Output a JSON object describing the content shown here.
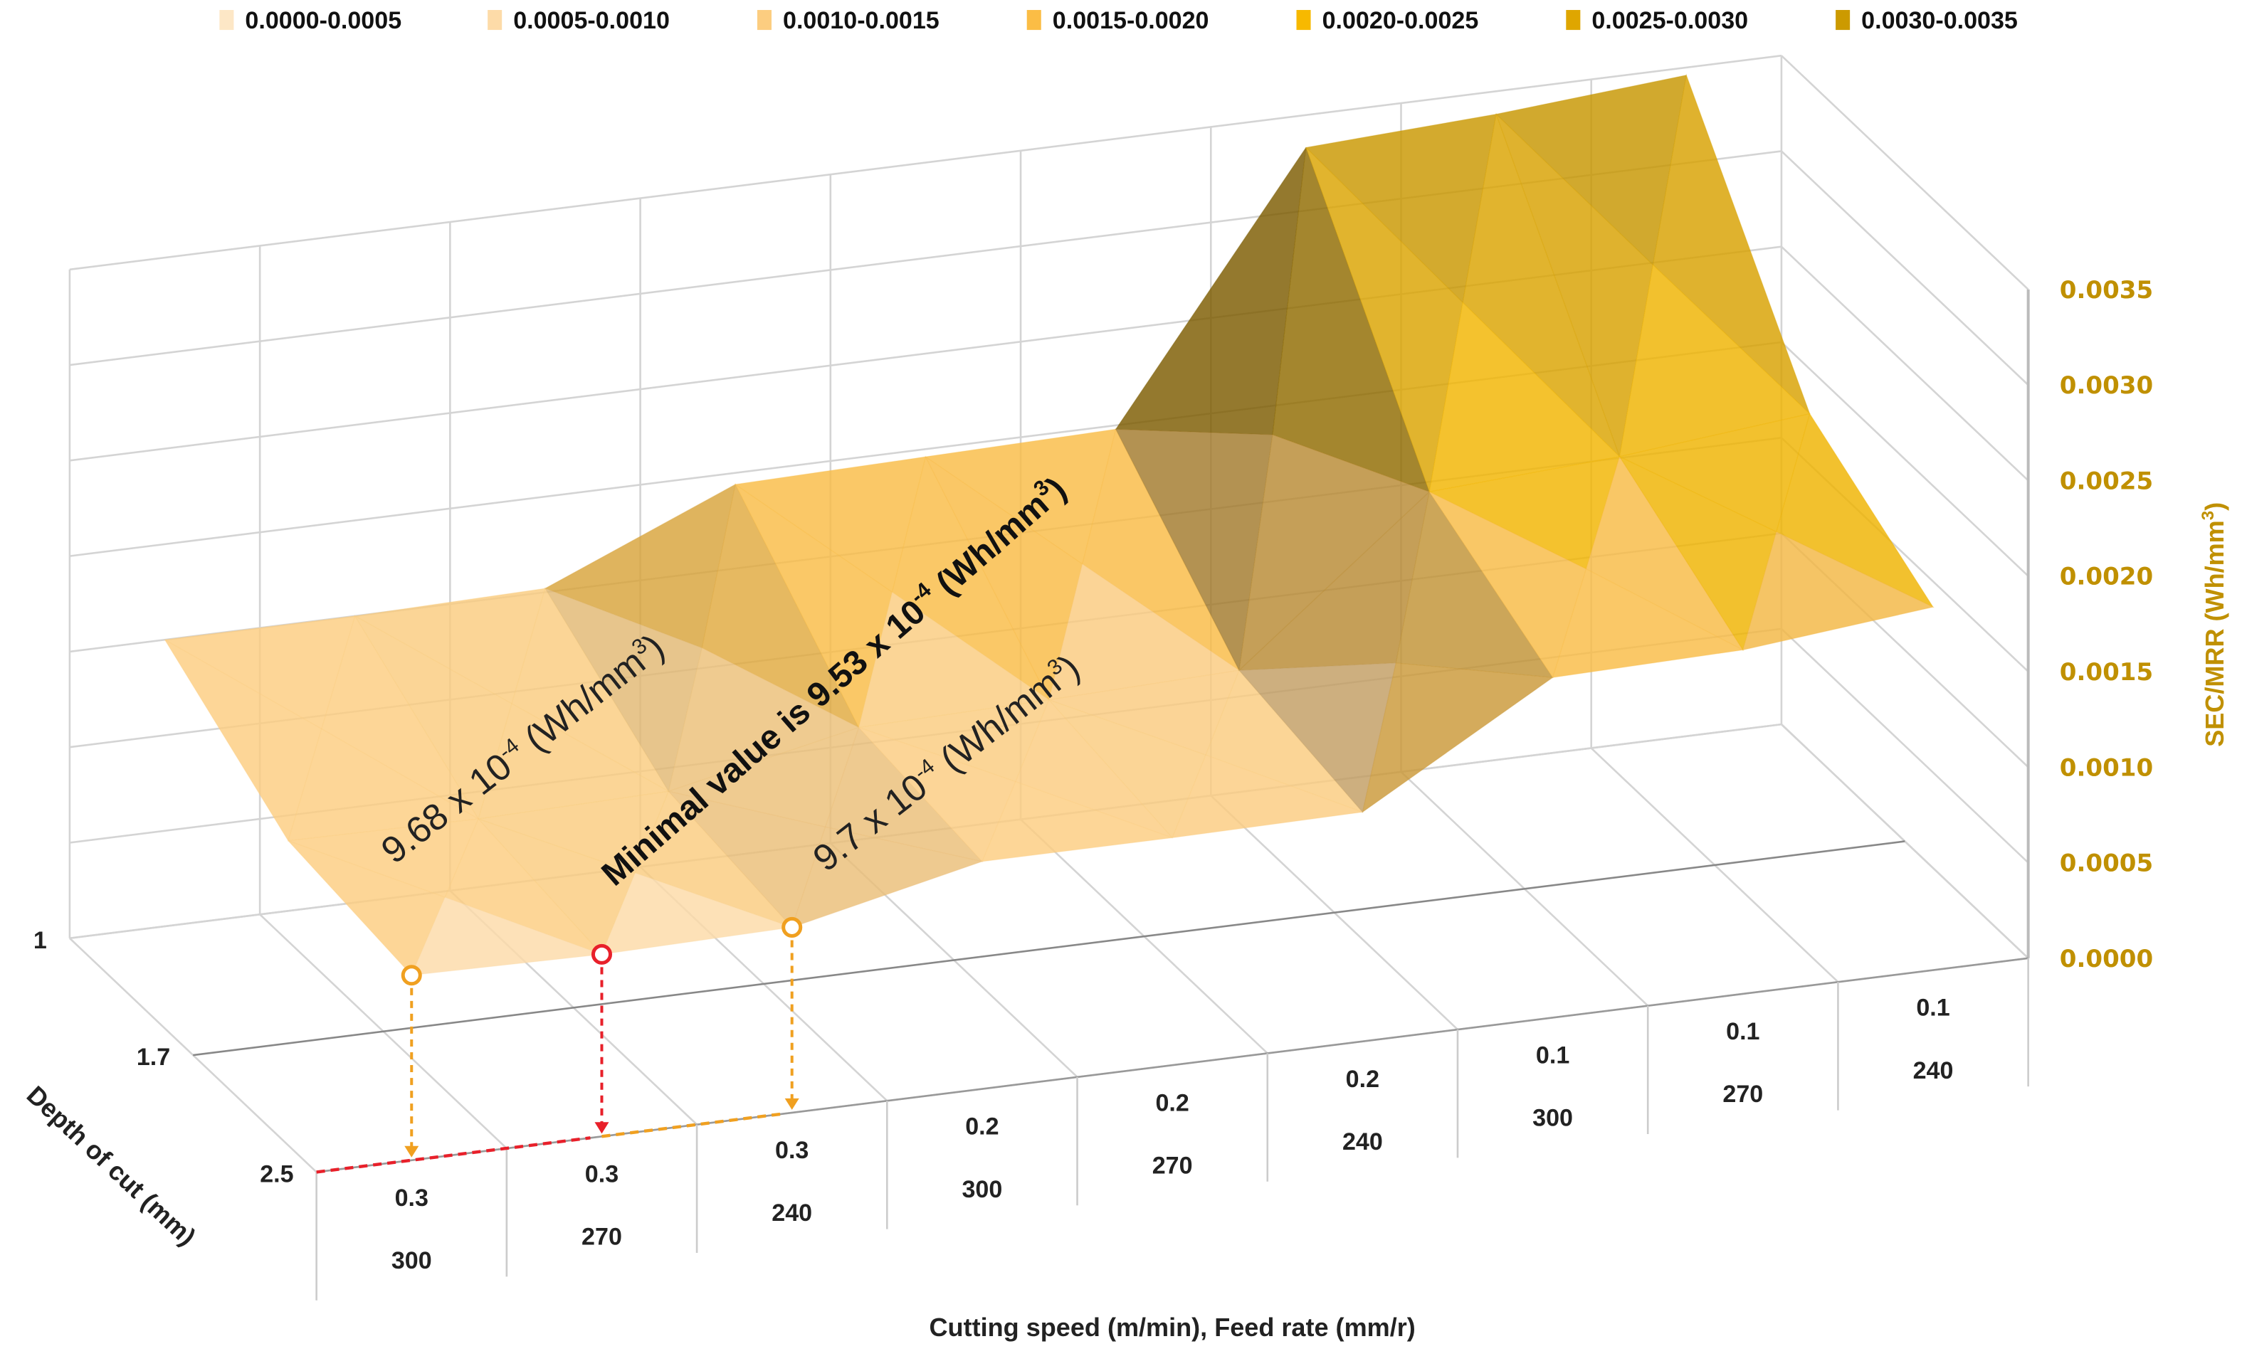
{
  "chart_data": {
    "type": "surface",
    "title": "",
    "xlabel": "Cutting speed (m/min), Feed rate (mm/r)",
    "zlabel": "Depth of cut (mm)",
    "ylabel_main": "SEC/MRR (Wh/mm",
    "ylabel_sup": "3",
    "ylabel_end": ")",
    "ylim": [
      0,
      0.0035
    ],
    "yticks": [
      "0.0000",
      "0.0005",
      "0.0010",
      "0.0015",
      "0.0020",
      "0.0025",
      "0.0030",
      "0.0035"
    ],
    "ytick_values": [
      0,
      0.0005,
      0.001,
      0.0015,
      0.002,
      0.0025,
      0.003,
      0.0035
    ],
    "categories": [
      {
        "feed": "0.3",
        "speed": "300"
      },
      {
        "feed": "0.3",
        "speed": "270"
      },
      {
        "feed": "0.3",
        "speed": "240"
      },
      {
        "feed": "0.2",
        "speed": "300"
      },
      {
        "feed": "0.2",
        "speed": "270"
      },
      {
        "feed": "0.2",
        "speed": "240"
      },
      {
        "feed": "0.1",
        "speed": "300"
      },
      {
        "feed": "0.1",
        "speed": "270"
      },
      {
        "feed": "0.1",
        "speed": "240"
      }
    ],
    "depth_ticks": [
      "2.5",
      "1.7",
      "1"
    ],
    "series": [
      {
        "depth": "2.5",
        "values": [
          0.000968,
          0.000953,
          0.00097,
          0.00119,
          0.00119,
          0.0012,
          0.00178,
          0.0018,
          0.0019
        ]
      },
      {
        "depth": "1.7",
        "values": [
          0.00106,
          0.00105,
          0.00107,
          0.00128,
          0.0013,
          0.00133,
          0.00214,
          0.0022,
          0.0023
        ]
      },
      {
        "depth": "1",
        "values": [
          0.0015,
          0.0015,
          0.00152,
          0.00194,
          0.00196,
          0.00198,
          0.00333,
          0.00338,
          0.00346
        ]
      }
    ],
    "legend_position": "top",
    "legend": [
      {
        "label": "0.0000-0.0005",
        "color": "#fde7c6"
      },
      {
        "label": "0.0005-0.0010",
        "color": "#fddba8"
      },
      {
        "label": "0.0010-0.0015",
        "color": "#fccd80"
      },
      {
        "label": "0.0015-0.0020",
        "color": "#fbbd45"
      },
      {
        "label": "0.0020-0.0025",
        "color": "#f7b900"
      },
      {
        "label": "0.0025-0.0030",
        "color": "#dfa600"
      },
      {
        "label": "0.0030-0.0035",
        "color": "#cc9a00"
      }
    ],
    "annotations": [
      {
        "main": "9.68 x 10",
        "exp": "-4",
        "unit": " (Wh/mm",
        "unit_sup": "3",
        "end": ")",
        "category": 0,
        "marker_color": "#f0a020"
      },
      {
        "main": "Minimal value is 9.53 x 10",
        "exp": "-4",
        "unit": " (Wh/mm",
        "unit_sup": "3",
        "end": ")",
        "category": 1,
        "marker_color": "#e8202a"
      },
      {
        "main": "9.7 x 10",
        "exp": "-4",
        "unit": " (Wh/mm",
        "unit_sup": "3",
        "end": ")",
        "category": 2,
        "marker_color": "#f0a020"
      }
    ],
    "axis_color": "#c09000",
    "grid": true
  }
}
